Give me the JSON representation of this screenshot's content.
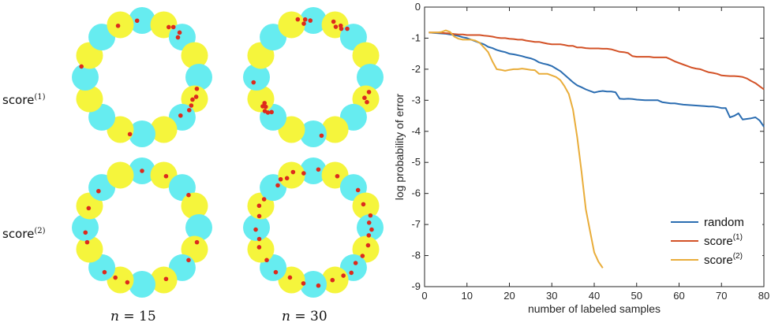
{
  "panels": {
    "rows": [
      {
        "label": "score",
        "sup": "(1)"
      },
      {
        "label": "score",
        "sup": "(2)"
      }
    ],
    "cols": [
      {
        "var": "n",
        "eq": " = ",
        "num": "15"
      },
      {
        "var": "n",
        "eq": " = ",
        "num": "30"
      }
    ],
    "colors": {
      "cyan": "#66ecf0",
      "yellow": "#f5f53c",
      "point": "#dd2a1d"
    },
    "ring_cluster_colors": [
      "cyan",
      "yellow",
      "cyan",
      "yellow",
      "cyan",
      "yellow",
      "cyan",
      "yellow",
      "cyan",
      "yellow",
      "cyan",
      "yellow",
      "cyan",
      "yellow",
      "cyan",
      "yellow"
    ]
  },
  "chart_data": {
    "type": "line",
    "xlabel": "number of labeled samples",
    "ylabel": "log probability of error",
    "xlim": [
      0,
      80
    ],
    "ylim": [
      -9,
      0
    ],
    "xticks": [
      0,
      10,
      20,
      30,
      40,
      50,
      60,
      70,
      80
    ],
    "yticks": [
      0,
      -1,
      -2,
      -3,
      -4,
      -5,
      -6,
      -7,
      -8,
      -9
    ],
    "grid": false,
    "legend": {
      "position": "bottom-right"
    },
    "series": [
      {
        "name": "random",
        "sup": "",
        "color": "#2b6db1",
        "x": [
          1,
          2,
          3,
          4,
          5,
          6,
          7,
          8,
          9,
          10,
          11,
          12,
          13,
          14,
          15,
          16,
          17,
          18,
          19,
          20,
          21,
          22,
          23,
          24,
          25,
          26,
          27,
          28,
          29,
          30,
          31,
          32,
          33,
          34,
          35,
          36,
          37,
          38,
          39,
          40,
          41,
          42,
          43,
          44,
          45,
          46,
          47,
          48,
          49,
          50,
          51,
          52,
          53,
          54,
          55,
          56,
          57,
          58,
          59,
          60,
          61,
          62,
          63,
          64,
          65,
          66,
          67,
          68,
          69,
          70,
          71,
          72,
          73,
          74,
          75,
          76,
          77,
          78,
          79,
          80
        ],
        "y": [
          -0.82,
          -0.83,
          -0.84,
          -0.85,
          -0.86,
          -0.88,
          -0.9,
          -0.93,
          -0.97,
          -1.0,
          -1.05,
          -1.1,
          -1.15,
          -1.2,
          -1.28,
          -1.32,
          -1.38,
          -1.42,
          -1.45,
          -1.5,
          -1.52,
          -1.55,
          -1.58,
          -1.62,
          -1.65,
          -1.7,
          -1.78,
          -1.82,
          -1.85,
          -1.9,
          -1.98,
          -2.06,
          -2.18,
          -2.3,
          -2.42,
          -2.52,
          -2.58,
          -2.65,
          -2.7,
          -2.75,
          -2.72,
          -2.7,
          -2.72,
          -2.72,
          -2.74,
          -2.95,
          -2.96,
          -2.95,
          -2.96,
          -2.98,
          -2.99,
          -3.0,
          -3.0,
          -3.0,
          -3.0,
          -3.06,
          -3.08,
          -3.1,
          -3.1,
          -3.12,
          -3.14,
          -3.15,
          -3.16,
          -3.17,
          -3.18,
          -3.19,
          -3.2,
          -3.2,
          -3.22,
          -3.25,
          -3.25,
          -3.55,
          -3.5,
          -3.42,
          -3.62,
          -3.6,
          -3.58,
          -3.55,
          -3.65,
          -3.85
        ]
      },
      {
        "name": "score",
        "sup": "(1)",
        "color": "#d35227",
        "x": [
          1,
          2,
          3,
          4,
          5,
          6,
          7,
          8,
          9,
          10,
          11,
          12,
          13,
          14,
          15,
          16,
          17,
          18,
          19,
          20,
          21,
          22,
          23,
          24,
          25,
          26,
          27,
          28,
          29,
          30,
          31,
          32,
          33,
          34,
          35,
          36,
          37,
          38,
          39,
          40,
          41,
          42,
          43,
          44,
          45,
          46,
          47,
          48,
          49,
          50,
          51,
          52,
          53,
          54,
          55,
          56,
          57,
          58,
          59,
          60,
          61,
          62,
          63,
          64,
          65,
          66,
          67,
          68,
          69,
          70,
          71,
          72,
          73,
          74,
          75,
          76,
          77,
          78,
          79,
          80
        ],
        "y": [
          -0.82,
          -0.82,
          -0.82,
          -0.83,
          -0.84,
          -0.85,
          -0.87,
          -0.88,
          -0.88,
          -0.9,
          -0.9,
          -0.9,
          -0.9,
          -0.92,
          -0.93,
          -0.95,
          -0.98,
          -1.0,
          -1.0,
          -1.02,
          -1.03,
          -1.05,
          -1.05,
          -1.08,
          -1.1,
          -1.12,
          -1.12,
          -1.15,
          -1.18,
          -1.2,
          -1.2,
          -1.2,
          -1.22,
          -1.25,
          -1.25,
          -1.3,
          -1.3,
          -1.32,
          -1.33,
          -1.33,
          -1.33,
          -1.34,
          -1.34,
          -1.36,
          -1.4,
          -1.44,
          -1.45,
          -1.48,
          -1.58,
          -1.6,
          -1.6,
          -1.6,
          -1.6,
          -1.62,
          -1.62,
          -1.62,
          -1.62,
          -1.68,
          -1.75,
          -1.8,
          -1.85,
          -1.9,
          -1.95,
          -1.98,
          -2.0,
          -2.05,
          -2.1,
          -2.12,
          -2.15,
          -2.2,
          -2.21,
          -2.22,
          -2.22,
          -2.23,
          -2.25,
          -2.3,
          -2.38,
          -2.45,
          -2.55,
          -2.65
        ]
      },
      {
        "name": "score",
        "sup": "(2)",
        "color": "#e9ad3a",
        "x": [
          1,
          2,
          3,
          4,
          5,
          6,
          7,
          8,
          9,
          10,
          11,
          12,
          13,
          14,
          15,
          16,
          17,
          18,
          19,
          20,
          21,
          22,
          23,
          24,
          25,
          26,
          27,
          28,
          29,
          30,
          31,
          32,
          33,
          34,
          35,
          36,
          37,
          38,
          39,
          40,
          41,
          42
        ],
        "y": [
          -0.82,
          -0.82,
          -0.82,
          -0.8,
          -0.75,
          -0.8,
          -0.95,
          -1.02,
          -1.05,
          -1.05,
          -1.05,
          -1.08,
          -1.15,
          -1.3,
          -1.45,
          -1.75,
          -2.0,
          -2.02,
          -2.05,
          -2.02,
          -2.0,
          -2.0,
          -1.98,
          -2.0,
          -2.02,
          -2.03,
          -2.15,
          -2.15,
          -2.15,
          -2.2,
          -2.25,
          -2.35,
          -2.55,
          -2.8,
          -3.3,
          -4.2,
          -5.3,
          -6.5,
          -7.2,
          -7.9,
          -8.2,
          -8.4
        ]
      }
    ]
  }
}
